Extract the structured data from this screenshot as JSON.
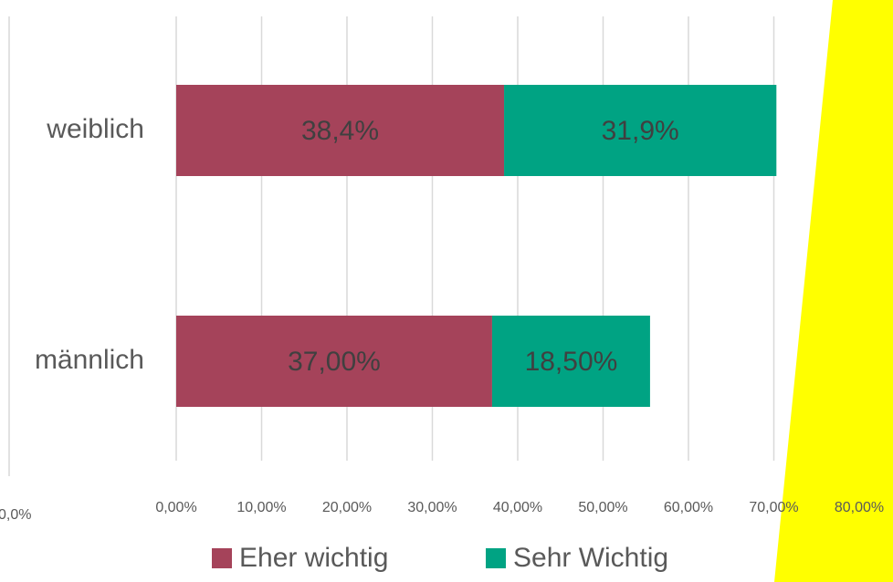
{
  "chart_data": {
    "type": "bar",
    "orientation": "horizontal",
    "stacked": true,
    "categories": [
      "weiblich",
      "männlich"
    ],
    "series": [
      {
        "name": "Eher wichtig",
        "color": "#a5435a",
        "values": [
          38.4,
          37
        ],
        "value_labels": [
          "38,4%",
          "37,00%"
        ]
      },
      {
        "name": "Sehr Wichtig",
        "color": "#00a383",
        "values": [
          31.9,
          18.5
        ],
        "value_labels": [
          "31,9%",
          "18,50%"
        ]
      }
    ],
    "xlim": [
      0,
      80
    ],
    "xticks": [
      {
        "value": 0,
        "label": "0,00%"
      },
      {
        "value": 10,
        "label": "10,00%"
      },
      {
        "value": 20,
        "label": "20,00%"
      },
      {
        "value": 30,
        "label": "30,00%"
      },
      {
        "value": 40,
        "label": "40,00%"
      },
      {
        "value": 50,
        "label": "50,00%"
      },
      {
        "value": 60,
        "label": "60,00%"
      },
      {
        "value": 70,
        "label": "70,00%"
      },
      {
        "value": 80,
        "label": "80,00%"
      }
    ],
    "grid": true,
    "legend": "bottom",
    "cropped_label": "0,0%"
  }
}
